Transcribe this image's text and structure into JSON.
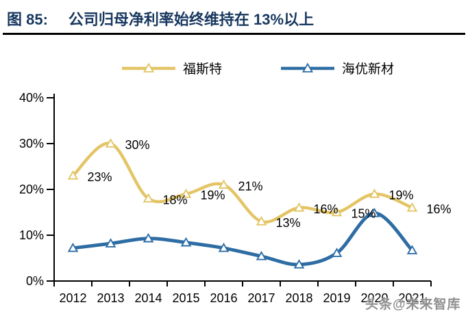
{
  "figure": {
    "label": "图 85:",
    "title": "公司归母净利率始终维持在 13%以上"
  },
  "watermark": {
    "text": "头条@未来智库"
  },
  "colors": {
    "title": "#17375E",
    "axis": "#000000",
    "data_label": "#000000",
    "watermark": "#8F8F8F"
  },
  "chart_data": {
    "type": "line",
    "title": "公司归母净利率始终维持在 13%以上",
    "categories": [
      "2012",
      "2013",
      "2014",
      "2015",
      "2016",
      "2017",
      "2018",
      "2019",
      "2020",
      "2021"
    ],
    "series": [
      {
        "name": "福斯特",
        "color": "#E3C566",
        "marker": "triangle-open",
        "values": [
          23,
          30,
          18,
          19,
          21,
          13,
          16,
          15,
          19,
          16
        ],
        "point_labels": [
          "23%",
          "30%",
          "18%",
          "19%",
          "21%",
          "13%",
          "16%",
          "15%",
          "19%",
          "16%"
        ]
      },
      {
        "name": "海优新材",
        "color": "#2E6DA4",
        "marker": "triangle-open",
        "values": [
          7.2,
          8.2,
          9.3,
          8.4,
          7.2,
          5.4,
          3.6,
          6.1,
          14.8,
          6.7
        ],
        "point_labels": []
      }
    ],
    "xlabel": "",
    "ylabel": "",
    "ylim": [
      0,
      40
    ],
    "ytick_labels": [
      "0%",
      "10%",
      "20%",
      "30%",
      "40%"
    ],
    "legend_position": "top",
    "grid": false,
    "smooth": true
  }
}
